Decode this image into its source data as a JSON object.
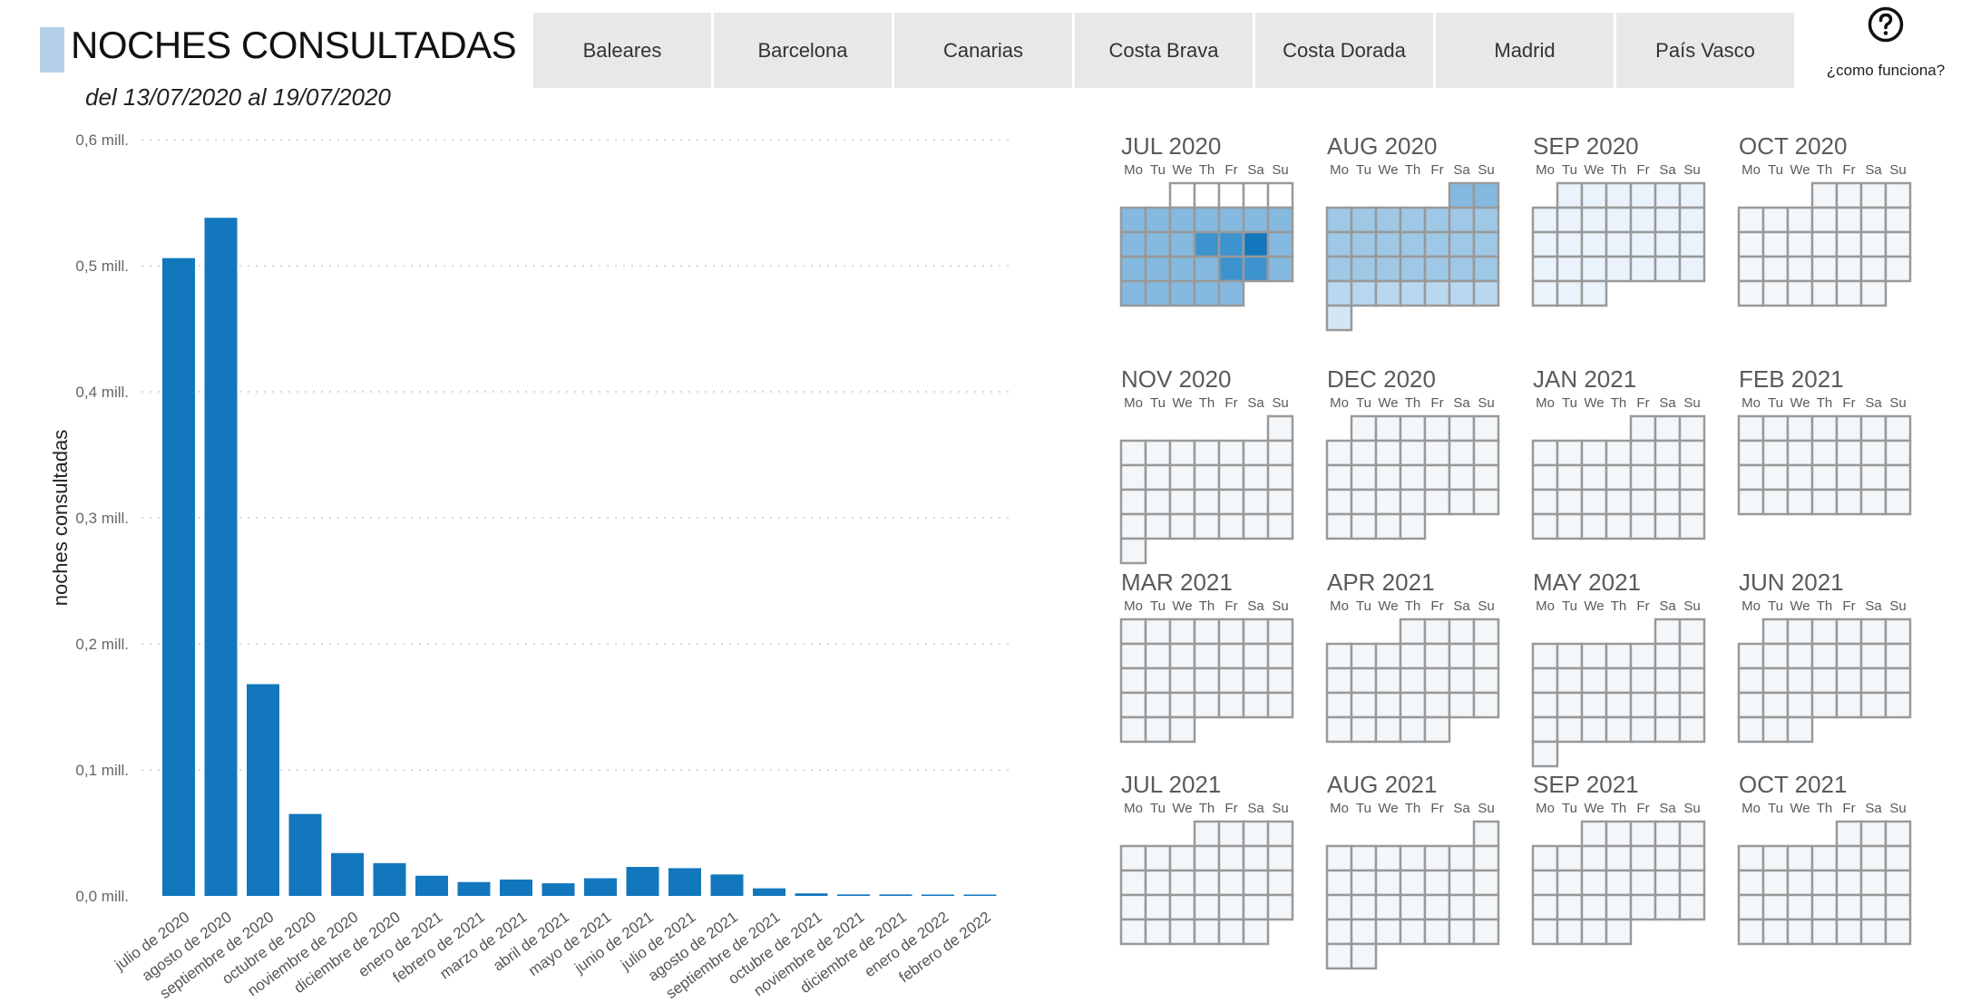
{
  "header": {
    "title": "NOCHES CONSULTADAS",
    "date_range": "del 13/07/2020 al 19/07/2020",
    "accent_color": "#b4d0e8"
  },
  "tabs": [
    {
      "label": "Baleares"
    },
    {
      "label": "Barcelona"
    },
    {
      "label": "Canarias"
    },
    {
      "label": "Costa Brava"
    },
    {
      "label": "Costa Dorada"
    },
    {
      "label": "Madrid"
    },
    {
      "label": "País Vasco"
    }
  ],
  "help": {
    "label": "¿como funciona?",
    "icon": "question-circle-icon"
  },
  "chart_data": {
    "type": "bar",
    "title": "",
    "xlabel": "",
    "ylabel": "noches consultadas",
    "ylim": [
      0,
      0.6
    ],
    "yticks": [
      0,
      0.1,
      0.2,
      0.3,
      0.4,
      0.5,
      0.6
    ],
    "ytick_labels": [
      "0,0 mill.",
      "0,1 mill.",
      "0,2 mill.",
      "0,3 mill.",
      "0,4 mill.",
      "0,5 mill.",
      "0,6 mill."
    ],
    "grid": true,
    "bar_color": "#1277bd",
    "categories": [
      "julio de 2020",
      "agosto de 2020",
      "septiembre de 2020",
      "octubre de 2020",
      "noviembre de 2020",
      "diciembre de 2020",
      "enero de 2021",
      "febrero de 2021",
      "marzo de 2021",
      "abril de 2021",
      "mayo de 2021",
      "junio de 2021",
      "julio de 2021",
      "agosto de 2021",
      "septiembre de 2021",
      "octubre de 2021",
      "noviembre de 2021",
      "diciembre de 2021",
      "enero de 2022",
      "febrero de 2022"
    ],
    "values": [
      0.506,
      0.538,
      0.168,
      0.065,
      0.034,
      0.026,
      0.016,
      0.011,
      0.013,
      0.01,
      0.014,
      0.023,
      0.022,
      0.017,
      0.006,
      0.002,
      0.0012,
      0.0012,
      0.0011,
      0.001
    ]
  },
  "calendar": {
    "weekday_labels": [
      "Mo",
      "Tu",
      "We",
      "Th",
      "Fr",
      "Sa",
      "Su"
    ],
    "grid_color": "#999999",
    "intensity_colors": [
      "#ffffff",
      "#f4f7fa",
      "#eaf3fb",
      "#d3e6f6",
      "#b9d7ef",
      "#9ec8e6",
      "#85b9df",
      "#3d93cd",
      "#1277bd"
    ],
    "months": [
      {
        "label": "JUL 2020",
        "year": 2020,
        "month": 7
      },
      {
        "label": "AUG 2020",
        "year": 2020,
        "month": 8
      },
      {
        "label": "SEP 2020",
        "year": 2020,
        "month": 9
      },
      {
        "label": "OCT 2020",
        "year": 2020,
        "month": 10
      },
      {
        "label": "NOV 2020",
        "year": 2020,
        "month": 11
      },
      {
        "label": "DEC 2020",
        "year": 2020,
        "month": 12
      },
      {
        "label": "JAN 2021",
        "year": 2021,
        "month": 1
      },
      {
        "label": "FEB 2021",
        "year": 2021,
        "month": 2
      },
      {
        "label": "MAR 2021",
        "year": 2021,
        "month": 3
      },
      {
        "label": "APR 2021",
        "year": 2021,
        "month": 4
      },
      {
        "label": "MAY 2021",
        "year": 2021,
        "month": 5
      },
      {
        "label": "JUN 2021",
        "year": 2021,
        "month": 6
      },
      {
        "label": "JUL 2021",
        "year": 2021,
        "month": 7
      },
      {
        "label": "AUG 2021",
        "year": 2021,
        "month": 8
      },
      {
        "label": "SEP 2021",
        "year": 2021,
        "month": 9
      },
      {
        "label": "OCT 2021",
        "year": 2021,
        "month": 10
      }
    ],
    "day_intensity": {
      "2020-07-06": 6,
      "2020-07-07": 6,
      "2020-07-08": 6,
      "2020-07-09": 6,
      "2020-07-10": 6,
      "2020-07-11": 6,
      "2020-07-12": 6,
      "2020-07-13": 6,
      "2020-07-14": 6,
      "2020-07-15": 6,
      "2020-07-16": 7,
      "2020-07-17": 7,
      "2020-07-18": 8,
      "2020-07-19": 6,
      "2020-07-20": 6,
      "2020-07-21": 6,
      "2020-07-22": 6,
      "2020-07-23": 6,
      "2020-07-24": 7,
      "2020-07-25": 7,
      "2020-07-26": 6,
      "2020-07-27": 6,
      "2020-07-28": 6,
      "2020-07-29": 6,
      "2020-07-30": 6,
      "2020-07-31": 6,
      "2020-08-01": 6,
      "2020-08-02": 6,
      "2020-08-03": 5,
      "2020-08-04": 5,
      "2020-08-05": 5,
      "2020-08-06": 5,
      "2020-08-07": 5,
      "2020-08-08": 5,
      "2020-08-09": 5,
      "2020-08-10": 5,
      "2020-08-11": 5,
      "2020-08-12": 5,
      "2020-08-13": 5,
      "2020-08-14": 5,
      "2020-08-15": 5,
      "2020-08-16": 5,
      "2020-08-17": 5,
      "2020-08-18": 5,
      "2020-08-19": 5,
      "2020-08-20": 5,
      "2020-08-21": 5,
      "2020-08-22": 5,
      "2020-08-23": 5,
      "2020-08-24": 4,
      "2020-08-25": 4,
      "2020-08-26": 4,
      "2020-08-27": 4,
      "2020-08-28": 4,
      "2020-08-29": 4,
      "2020-08-30": 4,
      "2020-08-31": 3,
      "2020-09-01": 2,
      "2020-09-02": 2,
      "2020-09-03": 2,
      "2020-09-04": 2,
      "2020-09-05": 2,
      "2020-09-06": 2,
      "2020-09-07": 2,
      "2020-09-08": 2,
      "2020-09-09": 2,
      "2020-09-10": 2,
      "2020-09-11": 2,
      "2020-09-12": 2,
      "2020-09-13": 2,
      "2020-09-14": 2,
      "2020-09-15": 2,
      "2020-09-16": 2,
      "2020-09-17": 2,
      "2020-09-18": 2,
      "2020-09-19": 2,
      "2020-09-20": 2,
      "2020-09-21": 2,
      "2020-09-22": 2,
      "2020-09-23": 2,
      "2020-09-24": 2,
      "2020-09-25": 2,
      "2020-09-26": 2,
      "2020-09-27": 2,
      "2020-09-28": 2,
      "2020-09-29": 2,
      "2020-09-30": 2
    }
  }
}
